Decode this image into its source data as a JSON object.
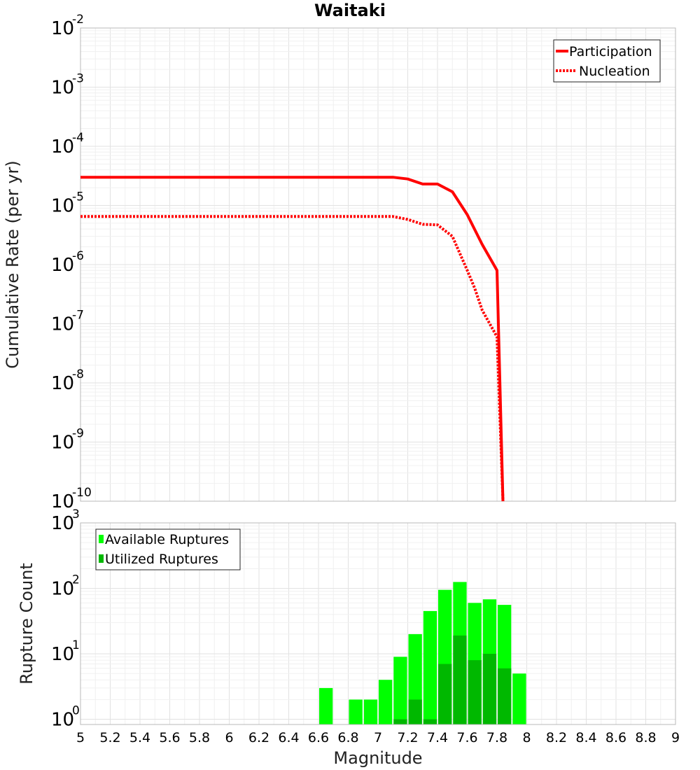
{
  "chart_data": [
    {
      "type": "line",
      "title": "Waitaki",
      "xlabel": "",
      "ylabel": "Cumulative Rate (per yr)",
      "yscale": "log",
      "xlim": [
        5,
        9
      ],
      "ylim_exponents": [
        -10,
        -2
      ],
      "ytick_exponents": [
        -10,
        -9,
        -8,
        -7,
        -6,
        -5,
        -4,
        -3,
        -2
      ],
      "series": [
        {
          "name": "Participation",
          "style": "solid",
          "color": "#ff0000",
          "x": [
            5.0,
            7.1,
            7.2,
            7.3,
            7.4,
            7.5,
            7.6,
            7.7,
            7.8,
            7.84
          ],
          "y": [
            3e-05,
            3e-05,
            2.8e-05,
            2.3e-05,
            2.3e-05,
            1.7e-05,
            7e-06,
            2.2e-06,
            8e-07,
            1e-10
          ]
        },
        {
          "name": "Nucleation",
          "style": "dotted",
          "color": "#ff0000",
          "x": [
            5.0,
            7.1,
            7.2,
            7.3,
            7.4,
            7.5,
            7.6,
            7.65,
            7.7,
            7.8,
            7.84
          ],
          "y": [
            6.5e-06,
            6.5e-06,
            5.8e-06,
            4.8e-06,
            4.7e-06,
            3e-06,
            8e-07,
            4e-07,
            1.7e-07,
            6e-08,
            1e-10
          ]
        }
      ],
      "legend": {
        "position": "top-right",
        "entries": [
          "Participation",
          "Nucleation"
        ]
      }
    },
    {
      "type": "bar",
      "title": "",
      "xlabel": "Magnitude",
      "ylabel": "Rupture Count",
      "yscale": "log",
      "xlim": [
        5,
        9
      ],
      "ylim_exponents": [
        0,
        3
      ],
      "ytick_exponents": [
        0,
        1,
        2,
        3
      ],
      "xticks": [
        "5",
        "5.2",
        "5.4",
        "5.6",
        "5.8",
        "6",
        "6.2",
        "6.4",
        "6.6",
        "6.8",
        "7",
        "7.2",
        "7.4",
        "7.6",
        "7.8",
        "8",
        "8.2",
        "8.4",
        "8.6",
        "8.8",
        "9"
      ],
      "bin_width": 0.1,
      "series": [
        {
          "name": "Available Ruptures",
          "color": "#00ff00",
          "x": [
            6.65,
            6.85,
            6.95,
            7.05,
            7.15,
            7.25,
            7.35,
            7.45,
            7.55,
            7.65,
            7.75,
            7.85,
            7.95
          ],
          "values": [
            3,
            2,
            2,
            4,
            9,
            20,
            45,
            95,
            125,
            60,
            68,
            56,
            5
          ]
        },
        {
          "name": "Utilized Ruptures",
          "color": "#00b800",
          "x": [
            7.15,
            7.25,
            7.35,
            7.45,
            7.55,
            7.65,
            7.75,
            7.85
          ],
          "values": [
            1,
            2,
            1,
            7,
            19,
            8,
            10,
            6
          ]
        }
      ],
      "legend": {
        "position": "top-left",
        "entries": [
          "Available Ruptures",
          "Utilized Ruptures"
        ]
      }
    }
  ]
}
